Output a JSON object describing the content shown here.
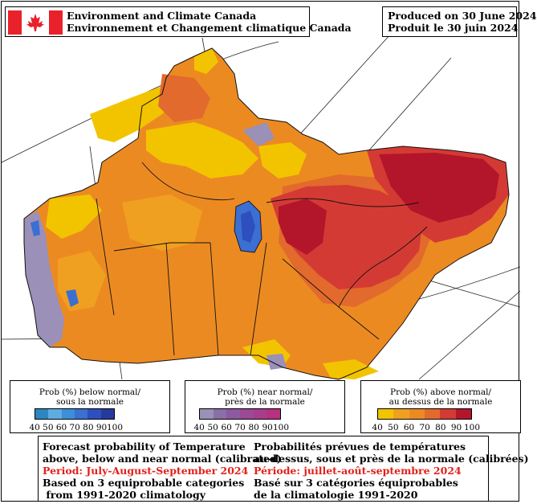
{
  "header": {
    "agency_en": "Environment and Climate Canada",
    "agency_fr": "Environnement et Changement climatique Canada",
    "produced_en": "Produced on 30 June 2024",
    "produced_fr": "Produit le 30 juin 2024"
  },
  "legends": [
    {
      "id": "below",
      "title_line1": "Prob (%) below normal/",
      "title_line2": "sous la normale",
      "ticks": [
        "40",
        "50",
        "60",
        "70",
        "80",
        "90",
        "100"
      ],
      "colors": [
        "#2e86c1",
        "#5dade2",
        "#3c8fd9",
        "#3b6fd1",
        "#2e4fbf",
        "#263a9e"
      ]
    },
    {
      "id": "near",
      "title_line1": "Prob (%) near normal/",
      "title_line2": "près de la normale",
      "ticks": [
        "40",
        "50",
        "60",
        "70",
        "80",
        "90",
        "100"
      ],
      "colors": [
        "#9a90b8",
        "#8a6fa8",
        "#8c5aa0",
        "#9a4a96",
        "#a83d8c",
        "#b83080"
      ]
    },
    {
      "id": "above",
      "title_line1": "Prob (%) above normal/",
      "title_line2": "au dessus de la normale",
      "ticks": [
        "40",
        "50",
        "60",
        "70",
        "80",
        "90",
        "100"
      ],
      "colors": [
        "#f2c400",
        "#f0a020",
        "#ec8a22",
        "#e26a2c",
        "#d43a34",
        "#b3152b"
      ]
    }
  ],
  "footer": {
    "en": {
      "line1": "Forecast probability of Temperature",
      "line2": "above, below and near normal (calibrated)",
      "period": "Period: July-August-September 2024",
      "line4": "Based on 3 equiprobable categories",
      "line5": " from 1991-2020 climatology"
    },
    "fr": {
      "line1": "Probabilités prévues de températures",
      "line2": "au-dessus, sous et près de la normale (calibrées)",
      "period": "Période: juillet-août-septembre 2024",
      "line4": "Basé sur 3 catégories équiprobables",
      "line5": "de la climatologie 1991-2020"
    }
  },
  "colors": {
    "yellow": "#f2c400",
    "light_orange": "#f0a020",
    "orange": "#ec8a22",
    "dark_orange": "#e26a2c",
    "red": "#d43a34",
    "dark_red": "#b3152b",
    "grey_purple": "#9a90b8",
    "blue": "#3b6fd1",
    "period_text": "#e2211c"
  }
}
